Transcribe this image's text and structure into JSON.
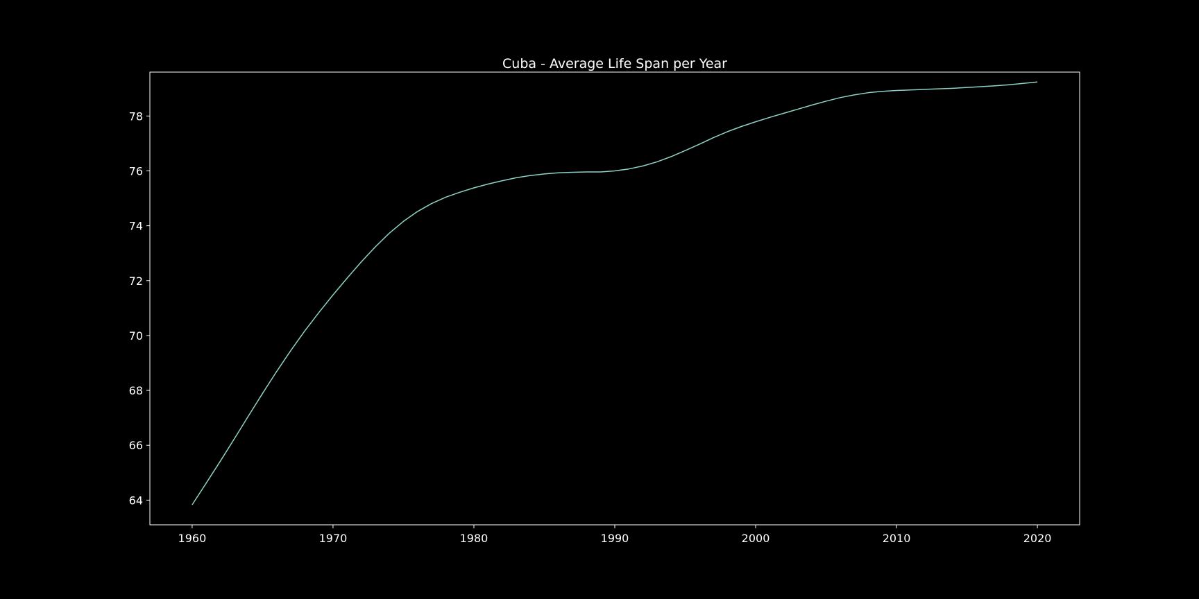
{
  "chart_data": {
    "type": "line",
    "title": "Cuba - Average Life Span per Year",
    "xlabel": "",
    "ylabel": "",
    "xlim": [
      1957,
      2023
    ],
    "ylim": [
      63.1,
      79.6
    ],
    "xticks": [
      1960,
      1970,
      1980,
      1990,
      2000,
      2010,
      2020
    ],
    "yticks": [
      64,
      66,
      68,
      70,
      72,
      74,
      76,
      78
    ],
    "grid": false,
    "legend": "none",
    "colors": {
      "background": "#000000",
      "line": "#8dd3c7",
      "axes": "#ffffff",
      "text": "#ffffff"
    },
    "series": [
      {
        "x": [
          1960,
          1961,
          1962,
          1963,
          1964,
          1965,
          1966,
          1967,
          1968,
          1969,
          1970,
          1971,
          1972,
          1973,
          1974,
          1975,
          1976,
          1977,
          1978,
          1979,
          1980,
          1981,
          1982,
          1983,
          1984,
          1985,
          1986,
          1987,
          1988,
          1989,
          1990,
          1991,
          1992,
          1993,
          1994,
          1995,
          1996,
          1997,
          1998,
          1999,
          2000,
          2001,
          2002,
          2003,
          2004,
          2005,
          2006,
          2007,
          2008,
          2009,
          2010,
          2011,
          2012,
          2013,
          2014,
          2015,
          2016,
          2017,
          2018,
          2019,
          2020
        ],
        "y": [
          63.83,
          64.62,
          65.42,
          66.24,
          67.07,
          67.89,
          68.69,
          69.45,
          70.17,
          70.84,
          71.48,
          72.09,
          72.68,
          73.23,
          73.73,
          74.16,
          74.52,
          74.81,
          75.04,
          75.22,
          75.38,
          75.52,
          75.64,
          75.75,
          75.83,
          75.89,
          75.93,
          75.95,
          75.96,
          75.96,
          76.0,
          76.07,
          76.18,
          76.33,
          76.52,
          76.74,
          76.97,
          77.21,
          77.43,
          77.62,
          77.79,
          77.95,
          78.1,
          78.25,
          78.4,
          78.54,
          78.67,
          78.77,
          78.85,
          78.9,
          78.93,
          78.95,
          78.97,
          78.99,
          79.01,
          79.04,
          79.07,
          79.1,
          79.14,
          79.19,
          79.24
        ]
      }
    ]
  }
}
